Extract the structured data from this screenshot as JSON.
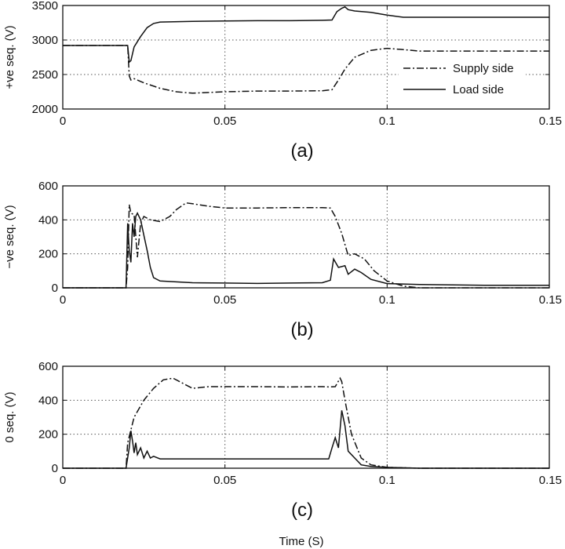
{
  "figure": {
    "xlabel": "Time (S)"
  },
  "chart_data": [
    {
      "type": "line",
      "caption": "(a)",
      "ylabel": "+ve seq. (V)",
      "xlim": [
        0,
        0.15
      ],
      "ylim": [
        2000,
        3500
      ],
      "xticks": [
        "0",
        "0.05",
        "0.1",
        "0.15"
      ],
      "yticks": [
        "2000",
        "2500",
        "3000",
        "3500"
      ],
      "grid": true,
      "legend": {
        "placement": "right",
        "entries": [
          "Supply side",
          "Load side"
        ]
      },
      "series": [
        {
          "name": "Supply side",
          "style": "dashdot",
          "points": [
            [
              0,
              2920
            ],
            [
              0.02,
              2920
            ],
            [
              0.0205,
              2480
            ],
            [
              0.021,
              2420
            ],
            [
              0.022,
              2440
            ],
            [
              0.025,
              2380
            ],
            [
              0.03,
              2300
            ],
            [
              0.035,
              2250
            ],
            [
              0.04,
              2230
            ],
            [
              0.05,
              2250
            ],
            [
              0.06,
              2260
            ],
            [
              0.07,
              2260
            ],
            [
              0.08,
              2265
            ],
            [
              0.083,
              2280
            ],
            [
              0.085,
              2420
            ],
            [
              0.087,
              2580
            ],
            [
              0.09,
              2750
            ],
            [
              0.095,
              2850
            ],
            [
              0.1,
              2880
            ],
            [
              0.105,
              2860
            ],
            [
              0.11,
              2840
            ],
            [
              0.12,
              2840
            ],
            [
              0.15,
              2840
            ]
          ]
        },
        {
          "name": "Load side",
          "style": "solid",
          "points": [
            [
              0,
              2920
            ],
            [
              0.02,
              2920
            ],
            [
              0.0205,
              2680
            ],
            [
              0.021,
              2700
            ],
            [
              0.022,
              2900
            ],
            [
              0.024,
              3050
            ],
            [
              0.026,
              3180
            ],
            [
              0.028,
              3240
            ],
            [
              0.03,
              3260
            ],
            [
              0.04,
              3270
            ],
            [
              0.05,
              3275
            ],
            [
              0.06,
              3280
            ],
            [
              0.07,
              3280
            ],
            [
              0.08,
              3285
            ],
            [
              0.083,
              3290
            ],
            [
              0.0845,
              3410
            ],
            [
              0.086,
              3460
            ],
            [
              0.087,
              3480
            ],
            [
              0.088,
              3440
            ],
            [
              0.09,
              3420
            ],
            [
              0.095,
              3400
            ],
            [
              0.1,
              3360
            ],
            [
              0.105,
              3330
            ],
            [
              0.12,
              3330
            ],
            [
              0.15,
              3330
            ]
          ]
        }
      ]
    },
    {
      "type": "line",
      "caption": "(b)",
      "ylabel": "−ve seq. (V)",
      "xlim": [
        0,
        0.15
      ],
      "ylim": [
        0,
        600
      ],
      "xticks": [
        "0",
        "0.05",
        "0.1",
        "0.15"
      ],
      "yticks": [
        "0",
        "200",
        "400",
        "600"
      ],
      "grid": true,
      "series": [
        {
          "name": "Supply side",
          "style": "dashdot",
          "points": [
            [
              0,
              0
            ],
            [
              0.0195,
              0
            ],
            [
              0.02,
              120
            ],
            [
              0.0205,
              490
            ],
            [
              0.021,
              440
            ],
            [
              0.022,
              430
            ],
            [
              0.023,
              180
            ],
            [
              0.024,
              380
            ],
            [
              0.025,
              420
            ],
            [
              0.027,
              400
            ],
            [
              0.03,
              390
            ],
            [
              0.033,
              420
            ],
            [
              0.035,
              460
            ],
            [
              0.038,
              500
            ],
            [
              0.04,
              495
            ],
            [
              0.045,
              480
            ],
            [
              0.05,
              470
            ],
            [
              0.06,
              470
            ],
            [
              0.07,
              472
            ],
            [
              0.08,
              472
            ],
            [
              0.0825,
              470
            ],
            [
              0.084,
              420
            ],
            [
              0.086,
              320
            ],
            [
              0.088,
              190
            ],
            [
              0.09,
              200
            ],
            [
              0.093,
              170
            ],
            [
              0.096,
              100
            ],
            [
              0.1,
              40
            ],
            [
              0.105,
              10
            ],
            [
              0.11,
              0
            ],
            [
              0.15,
              0
            ]
          ]
        },
        {
          "name": "Load side",
          "style": "solid",
          "points": [
            [
              0,
              0
            ],
            [
              0.0195,
              0
            ],
            [
              0.02,
              380
            ],
            [
              0.0205,
              220
            ],
            [
              0.021,
              150
            ],
            [
              0.0215,
              380
            ],
            [
              0.022,
              300
            ],
            [
              0.0225,
              420
            ],
            [
              0.023,
              440
            ],
            [
              0.024,
              400
            ],
            [
              0.025,
              310
            ],
            [
              0.026,
              220
            ],
            [
              0.027,
              120
            ],
            [
              0.028,
              60
            ],
            [
              0.03,
              40
            ],
            [
              0.035,
              35
            ],
            [
              0.04,
              30
            ],
            [
              0.05,
              28
            ],
            [
              0.06,
              26
            ],
            [
              0.07,
              28
            ],
            [
              0.08,
              30
            ],
            [
              0.0825,
              45
            ],
            [
              0.0835,
              170
            ],
            [
              0.085,
              120
            ],
            [
              0.087,
              130
            ],
            [
              0.088,
              80
            ],
            [
              0.09,
              110
            ],
            [
              0.092,
              90
            ],
            [
              0.095,
              50
            ],
            [
              0.1,
              25
            ],
            [
              0.11,
              20
            ],
            [
              0.13,
              15
            ],
            [
              0.15,
              15
            ]
          ]
        }
      ]
    },
    {
      "type": "line",
      "caption": "(c)",
      "ylabel": "0 seq. (V)",
      "xlim": [
        0,
        0.15
      ],
      "ylim": [
        0,
        600
      ],
      "xticks": [
        "0",
        "0.05",
        "0.1",
        "0.15"
      ],
      "yticks": [
        "0",
        "200",
        "400",
        "600"
      ],
      "grid": true,
      "series": [
        {
          "name": "Supply side",
          "style": "dashdot",
          "points": [
            [
              0,
              0
            ],
            [
              0.0195,
              0
            ],
            [
              0.02,
              150
            ],
            [
              0.022,
              300
            ],
            [
              0.025,
              400
            ],
            [
              0.028,
              470
            ],
            [
              0.031,
              520
            ],
            [
              0.034,
              530
            ],
            [
              0.037,
              500
            ],
            [
              0.04,
              470
            ],
            [
              0.045,
              480
            ],
            [
              0.05,
              480
            ],
            [
              0.06,
              480
            ],
            [
              0.07,
              478
            ],
            [
              0.08,
              480
            ],
            [
              0.082,
              478
            ],
            [
              0.084,
              480
            ],
            [
              0.0855,
              530
            ],
            [
              0.086,
              510
            ],
            [
              0.087,
              400
            ],
            [
              0.089,
              200
            ],
            [
              0.092,
              60
            ],
            [
              0.095,
              20
            ],
            [
              0.1,
              5
            ],
            [
              0.11,
              0
            ],
            [
              0.15,
              0
            ]
          ]
        },
        {
          "name": "Load side",
          "style": "solid",
          "points": [
            [
              0,
              0
            ],
            [
              0.0195,
              0
            ],
            [
              0.0205,
              120
            ],
            [
              0.021,
              220
            ],
            [
              0.0215,
              160
            ],
            [
              0.022,
              90
            ],
            [
              0.0225,
              150
            ],
            [
              0.023,
              80
            ],
            [
              0.024,
              120
            ],
            [
              0.025,
              60
            ],
            [
              0.026,
              100
            ],
            [
              0.027,
              60
            ],
            [
              0.028,
              70
            ],
            [
              0.03,
              55
            ],
            [
              0.035,
              55
            ],
            [
              0.04,
              55
            ],
            [
              0.05,
              55
            ],
            [
              0.06,
              55
            ],
            [
              0.07,
              55
            ],
            [
              0.08,
              55
            ],
            [
              0.082,
              55
            ],
            [
              0.083,
              120
            ],
            [
              0.084,
              180
            ],
            [
              0.085,
              120
            ],
            [
              0.086,
              340
            ],
            [
              0.087,
              250
            ],
            [
              0.088,
              100
            ],
            [
              0.089,
              80
            ],
            [
              0.09,
              60
            ],
            [
              0.092,
              20
            ],
            [
              0.095,
              10
            ],
            [
              0.1,
              5
            ],
            [
              0.11,
              0
            ],
            [
              0.15,
              0
            ]
          ]
        }
      ]
    }
  ]
}
